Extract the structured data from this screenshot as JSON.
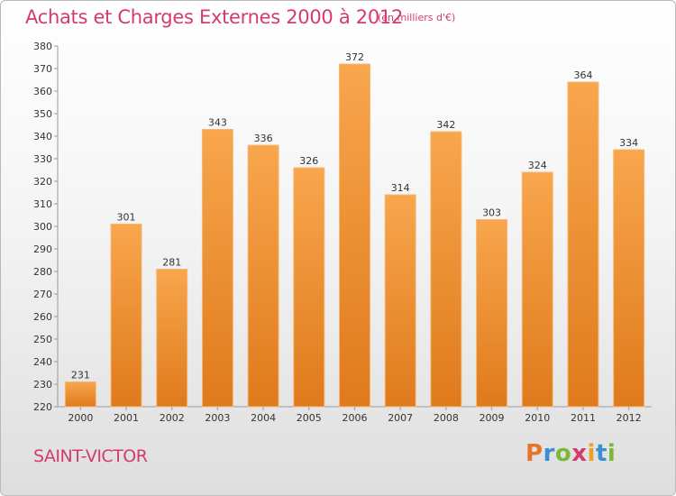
{
  "title": "Achats et Charges Externes 2000 à 2012",
  "unit_note": "(en milliers d'€)",
  "commune": "SAINT-VICTOR",
  "brand": {
    "letters": [
      "P",
      "r",
      "o",
      "x",
      "i",
      "t",
      "i"
    ],
    "colors": [
      "#e8742a",
      "#3a8fd4",
      "#7ab83a",
      "#d43a6e",
      "#e8a22a",
      "#3a8fd4",
      "#7ab83a"
    ]
  },
  "colors": {
    "bar": "#f39a40",
    "title": "#d43a6e"
  },
  "chart_data": {
    "type": "bar",
    "title": "Achats et Charges Externes 2000 à 2012",
    "categories": [
      "2000",
      "2001",
      "2002",
      "2003",
      "2004",
      "2005",
      "2006",
      "2007",
      "2008",
      "2009",
      "2010",
      "2011",
      "2012"
    ],
    "values": [
      231,
      301,
      281,
      343,
      336,
      326,
      372,
      314,
      342,
      303,
      324,
      364,
      334
    ],
    "ylim": [
      220,
      380
    ],
    "yticks": [
      220,
      230,
      240,
      250,
      260,
      270,
      280,
      290,
      300,
      310,
      320,
      330,
      340,
      350,
      360,
      370,
      380
    ],
    "grid": false,
    "data_labels": true
  }
}
